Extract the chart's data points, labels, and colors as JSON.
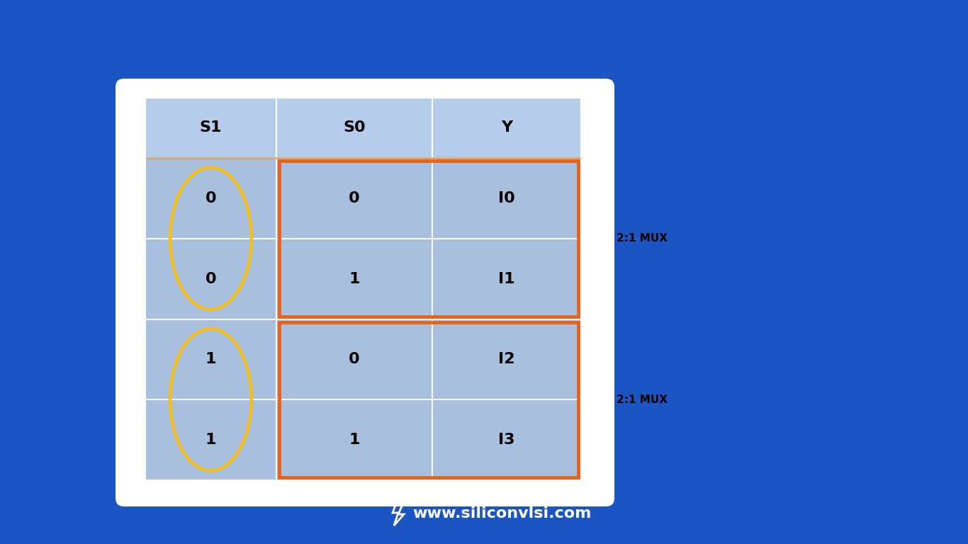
{
  "bg_color": "#1b55c3",
  "table_bg": "#a8c0de",
  "header_bg": "#b5cceb",
  "white_card_color": "#ffffff",
  "title_text": "www.siliconvlsi.com",
  "headers": [
    "S1",
    "S0",
    "Y"
  ],
  "rows": [
    [
      "0",
      "0",
      "I0"
    ],
    [
      "0",
      "1",
      "I1"
    ],
    [
      "1",
      "0",
      "I2"
    ],
    [
      "1",
      "1",
      "I3"
    ]
  ],
  "orange_color": "#e8621a",
  "yellow_color": "#f5be18",
  "orange_lw": 3.5,
  "yellow_lw": 3.2,
  "mux_label": "2:1 MUX",
  "font_size_header": 16,
  "font_size_cell": 16,
  "font_size_mux": 11,
  "font_size_title": 16,
  "header_sep_color": "#d4a870"
}
